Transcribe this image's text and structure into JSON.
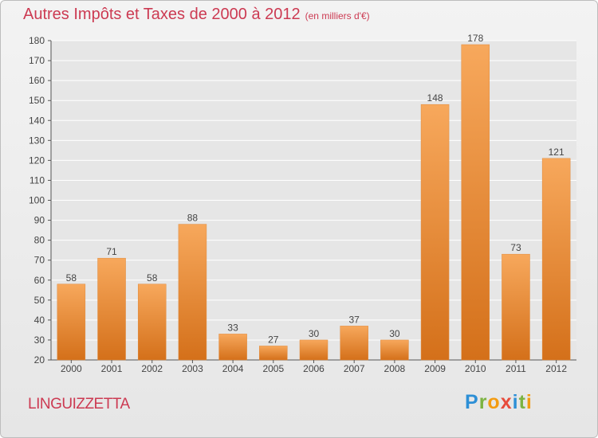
{
  "chart_data": {
    "type": "bar",
    "title": "Autres Impôts et Taxes de 2000 à 2012",
    "unit_label": "(en milliers d'€)",
    "categories": [
      "2000",
      "2001",
      "2002",
      "2003",
      "2004",
      "2005",
      "2006",
      "2007",
      "2008",
      "2009",
      "2010",
      "2011",
      "2012"
    ],
    "values": [
      58,
      71,
      58,
      88,
      33,
      27,
      30,
      37,
      30,
      148,
      178,
      73,
      121
    ],
    "ylim": [
      20,
      180
    ],
    "yticks": [
      20,
      30,
      40,
      50,
      60,
      70,
      80,
      90,
      100,
      110,
      120,
      130,
      140,
      150,
      160,
      170,
      180
    ],
    "grid": true,
    "bar_color": "#f0913a",
    "bar_color_light": "#f7a85c",
    "bar_color_dark": "#d4701a"
  },
  "location": "LINGUIZZETTA",
  "logo": {
    "letters": [
      "P",
      "r",
      "o",
      "x",
      "i",
      "t",
      "i"
    ]
  }
}
